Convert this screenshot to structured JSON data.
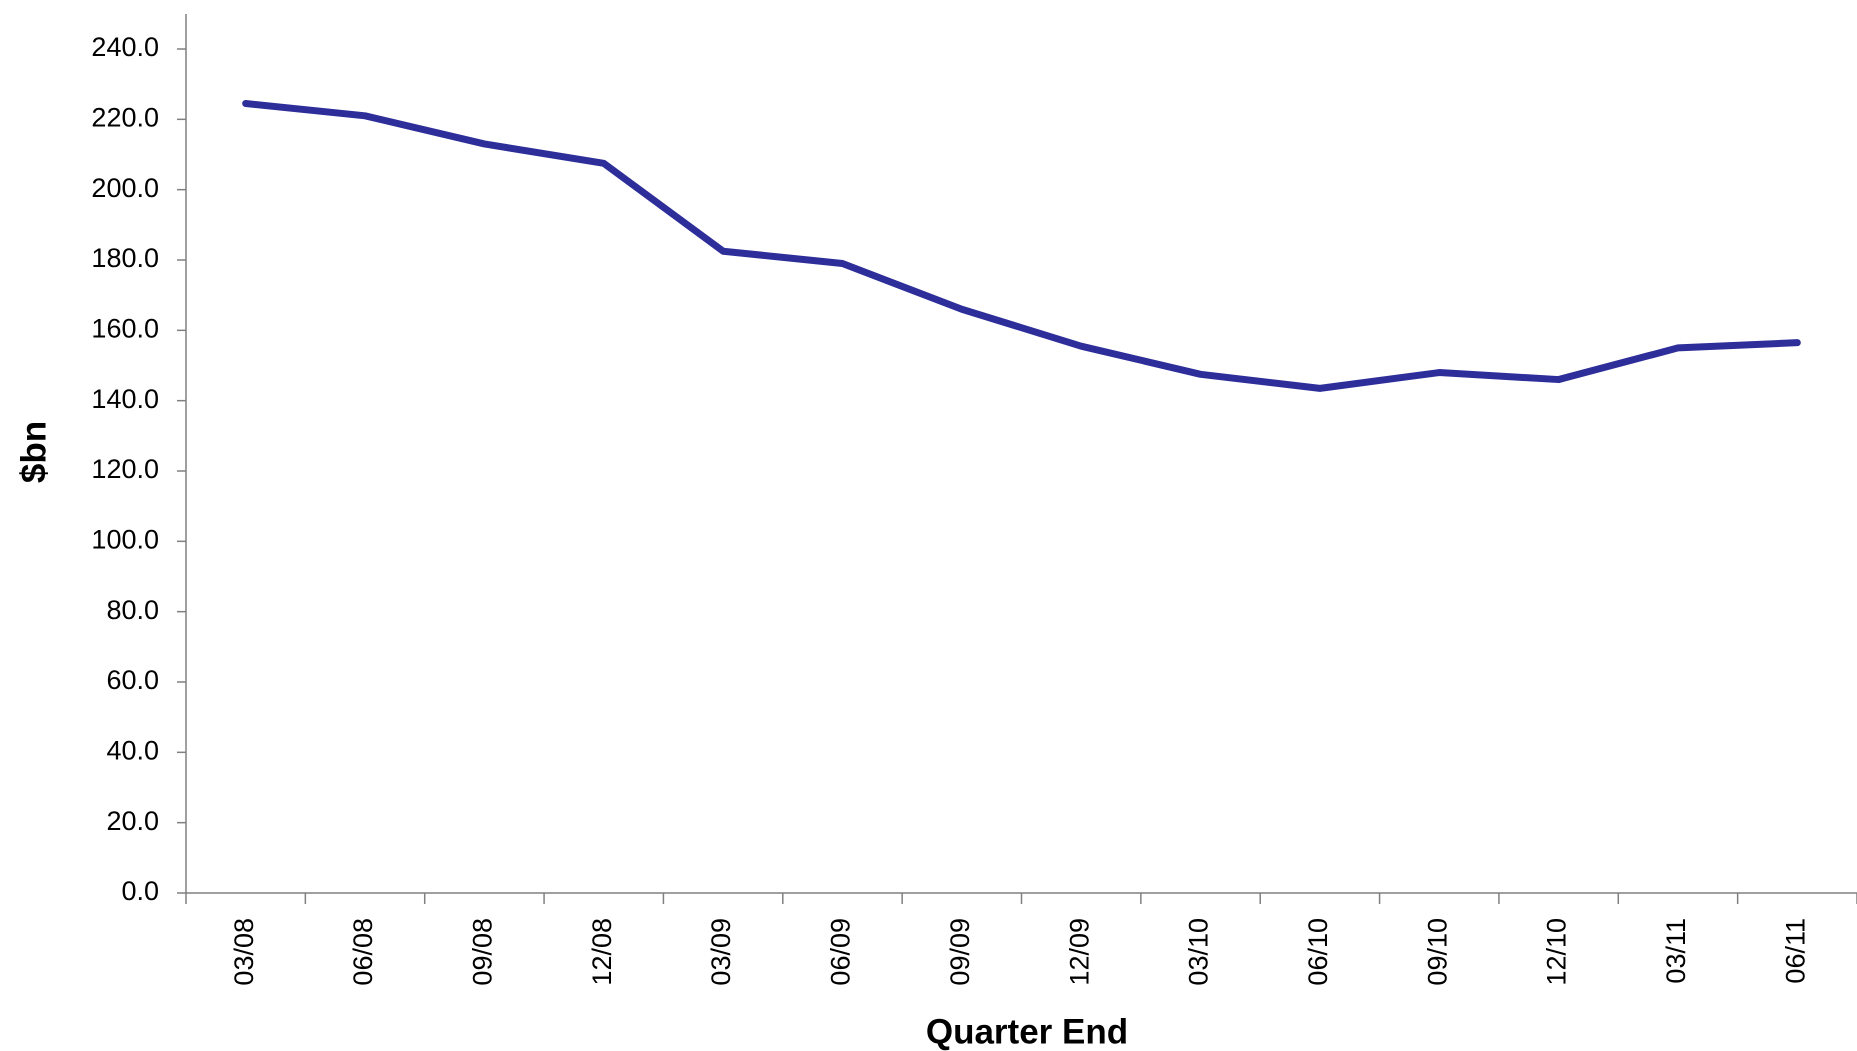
{
  "chart_data": {
    "type": "line",
    "xlabel": "Quarter End",
    "ylabel": "$bn",
    "categories": [
      "03/08",
      "06/08",
      "09/08",
      "12/08",
      "03/09",
      "06/09",
      "09/09",
      "12/09",
      "03/10",
      "06/10",
      "09/10",
      "12/10",
      "03/11",
      "06/11"
    ],
    "series": [
      {
        "name": "$bn",
        "color": "#2e2e9a",
        "values": [
          224.5,
          221,
          213,
          207.5,
          182.5,
          179,
          166,
          155.5,
          147.5,
          143.5,
          148,
          146,
          155,
          156.5
        ]
      }
    ],
    "ylim": [
      0,
      240
    ],
    "yticks": [
      {
        "value": 0,
        "label": "0.0"
      },
      {
        "value": 20,
        "label": "20.0"
      },
      {
        "value": 40,
        "label": "40.0"
      },
      {
        "value": 60,
        "label": "60.0"
      },
      {
        "value": 80,
        "label": "80.0"
      },
      {
        "value": 100,
        "label": "100.0"
      },
      {
        "value": 120,
        "label": "120.0"
      },
      {
        "value": 140,
        "label": "140.0"
      },
      {
        "value": 160,
        "label": "160.0"
      },
      {
        "value": 180,
        "label": "180.0"
      },
      {
        "value": 200,
        "label": "200.0"
      },
      {
        "value": 220,
        "label": "220.0"
      },
      {
        "value": 240,
        "label": "240.0"
      }
    ],
    "grid": false
  }
}
